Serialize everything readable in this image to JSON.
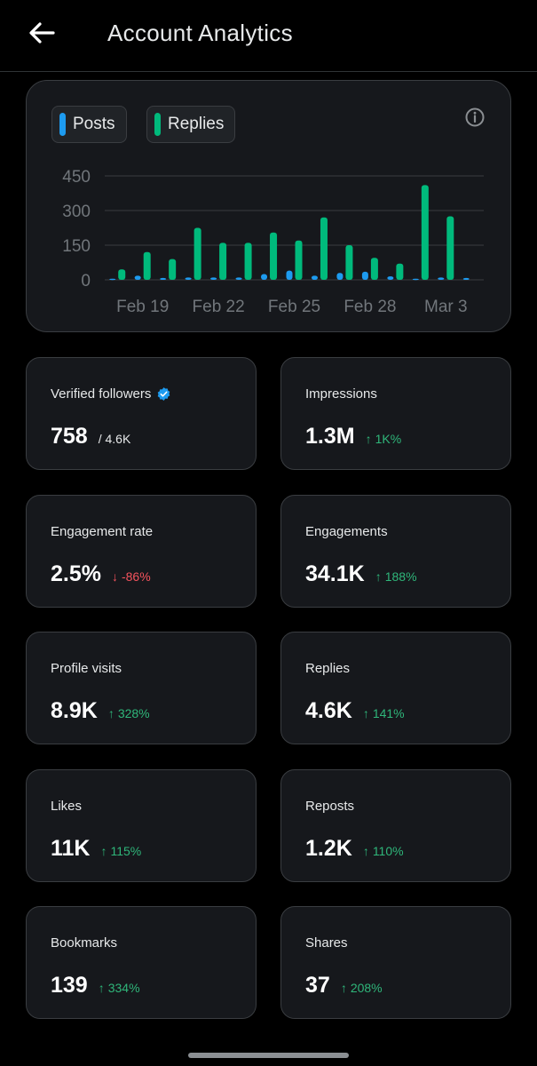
{
  "header": {
    "title": "Account Analytics"
  },
  "legend": [
    {
      "label": "Posts",
      "color": "#1d9bf0"
    },
    {
      "label": "Replies",
      "color": "#00ba7c"
    }
  ],
  "chart_data": {
    "type": "bar",
    "title": "",
    "xlabel": "",
    "ylabel": "",
    "ylim": [
      0,
      450
    ],
    "yticks": [
      "0",
      "150",
      "300",
      "450"
    ],
    "xtick_labels": [
      "Feb 19",
      "Feb 22",
      "Feb 25",
      "Feb 28",
      "Mar 3"
    ],
    "categories": [
      "Feb 18",
      "Feb 19",
      "Feb 20",
      "Feb 21",
      "Feb 22",
      "Feb 23",
      "Feb 24",
      "Feb 25",
      "Feb 26",
      "Feb 27",
      "Feb 28",
      "Mar 1",
      "Mar 2",
      "Mar 3",
      "Mar 4"
    ],
    "series": [
      {
        "name": "Posts",
        "color": "#1d9bf0",
        "values": [
          5,
          18,
          8,
          10,
          10,
          10,
          25,
          40,
          18,
          30,
          35,
          15,
          5,
          10,
          8
        ]
      },
      {
        "name": "Replies",
        "color": "#00ba7c",
        "values": [
          45,
          120,
          90,
          225,
          160,
          160,
          205,
          170,
          270,
          150,
          95,
          70,
          410,
          275,
          0
        ]
      }
    ],
    "grid": true
  },
  "stats": [
    {
      "label": "Verified followers",
      "value": "758",
      "sub": "/ 4.6K",
      "verified": true
    },
    {
      "label": "Impressions",
      "value": "1.3M",
      "delta": "1K%",
      "direction": "up"
    },
    {
      "label": "Engagement rate",
      "value": "2.5%",
      "delta": "-86%",
      "direction": "down"
    },
    {
      "label": "Engagements",
      "value": "34.1K",
      "delta": "188%",
      "direction": "up"
    },
    {
      "label": "Profile visits",
      "value": "8.9K",
      "delta": "328%",
      "direction": "up"
    },
    {
      "label": "Replies",
      "value": "4.6K",
      "delta": "141%",
      "direction": "up"
    },
    {
      "label": "Likes",
      "value": "11K",
      "delta": "115%",
      "direction": "up"
    },
    {
      "label": "Reposts",
      "value": "1.2K",
      "delta": "110%",
      "direction": "up"
    },
    {
      "label": "Bookmarks",
      "value": "139",
      "delta": "334%",
      "direction": "up"
    },
    {
      "label": "Shares",
      "value": "37",
      "delta": "208%",
      "direction": "up"
    }
  ],
  "arrows": {
    "up": "↑",
    "down": "↓"
  }
}
